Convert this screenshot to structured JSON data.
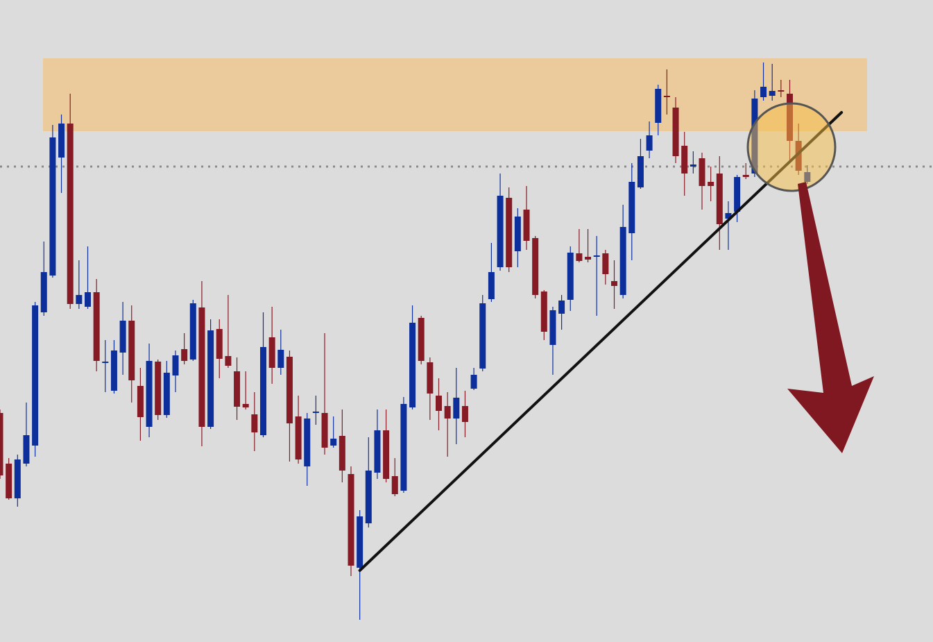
{
  "chart_data": {
    "type": "candlestick",
    "up_color": "#0d2f9c",
    "down_color": "#861a25",
    "ylim": [
      0,
      92.5
    ],
    "open": [
      33,
      25.7,
      20.7,
      25.7,
      28.3,
      47.5,
      52.8,
      69.8,
      74.7,
      48.7,
      48.3,
      50.4,
      40.2,
      36.2,
      41.7,
      46.3,
      36.9,
      31,
      40.4,
      32.7,
      38.4,
      42.2,
      40.7,
      48.2,
      31,
      45.1,
      41.2,
      39,
      34.3,
      32.8,
      29.8,
      43.9,
      39.5,
      41.1,
      32.5,
      25.3,
      33,
      33,
      28.3,
      29.7,
      24.2,
      10.7,
      17.1,
      24.4,
      30.5,
      23.9,
      21.8,
      33.8,
      46.7,
      40.3,
      35.5,
      34,
      32.2,
      34,
      36.5,
      39.4,
      49.4,
      54,
      64,
      56.3,
      62.3,
      58.2,
      50.5,
      42.8,
      47.3,
      49.3,
      56,
      55.5,
      55.5,
      56,
      52,
      50,
      58.9,
      65.5,
      70.8,
      74.8,
      78.7,
      77,
      71.5,
      68.5,
      69.7,
      66.3,
      67.5,
      61,
      62,
      67.3,
      67.5,
      78.5,
      78.7,
      79.5,
      79,
      72.2,
      66.3
    ],
    "high": [
      33.5,
      26.5,
      27,
      34.5,
      49,
      57.7,
      74.5,
      76,
      79,
      55,
      57,
      52.3,
      43.5,
      43.5,
      49,
      48.5,
      39.5,
      43,
      40.7,
      40.5,
      42,
      44.5,
      49.3,
      52,
      46.5,
      46.5,
      50,
      41,
      39,
      36,
      47.5,
      48.3,
      45,
      42,
      35.5,
      33,
      35.5,
      44.5,
      32.5,
      33.5,
      25.3,
      19,
      29.5,
      33.5,
      33.5,
      26.5,
      35.3,
      48.5,
      47,
      41,
      38,
      36,
      39.5,
      36.2,
      39.5,
      50,
      57.5,
      67.5,
      65.5,
      62.5,
      65.7,
      58.5,
      50.7,
      48.3,
      50,
      57,
      59.5,
      59.5,
      58.5,
      56.5,
      55,
      63,
      69,
      72.5,
      75,
      80.3,
      82.5,
      78.5,
      73.5,
      70.7,
      70.5,
      68.5,
      70,
      63.5,
      67.3,
      69,
      79.5,
      83.5,
      83.3,
      81,
      81,
      74.7,
      68.7
    ],
    "low": [
      23.5,
      20.5,
      19.5,
      25.3,
      26.7,
      47,
      52.5,
      64.7,
      48,
      48,
      48,
      39,
      36,
      35.8,
      38.5,
      34.5,
      29,
      29.5,
      32,
      32.3,
      36,
      40,
      40.5,
      28.2,
      30.7,
      38,
      39.5,
      32,
      33.5,
      27.5,
      29.5,
      37.2,
      38.5,
      26,
      25.7,
      22.5,
      31.3,
      27,
      28,
      23,
      9.5,
      3.2,
      16.5,
      23.5,
      23,
      21,
      21.5,
      33.5,
      40,
      32,
      30.5,
      26.7,
      28.5,
      29.5,
      36.3,
      39,
      49,
      53.5,
      53.3,
      54,
      56.5,
      49.5,
      43.5,
      38.5,
      45,
      47.7,
      54.7,
      54.7,
      47,
      51.5,
      48,
      49.5,
      55,
      65.3,
      69.7,
      73,
      76,
      69,
      64.3,
      67.5,
      62.3,
      63.5,
      56.5,
      56.5,
      60.5,
      66.7,
      67,
      78,
      78,
      78.5,
      69,
      67.3,
      66
    ],
    "close": [
      24,
      20.7,
      26.3,
      29.8,
      48.5,
      53.3,
      72.7,
      74.7,
      48.7,
      50,
      50.4,
      40.5,
      40.4,
      42,
      46.3,
      37.7,
      32.4,
      40.5,
      32.7,
      38.8,
      41.3,
      40.5,
      48.8,
      31,
      44.9,
      40.8,
      39.8,
      33.9,
      33.8,
      30.2,
      42.5,
      39.5,
      42.1,
      31.5,
      26.3,
      32.2,
      33.2,
      28,
      29.3,
      24.7,
      11,
      18.1,
      24.7,
      30.5,
      23.5,
      21.3,
      34.3,
      46,
      40.5,
      35.8,
      33.3,
      32.2,
      35.2,
      31.7,
      38.5,
      48.8,
      53.3,
      64.3,
      54,
      61.3,
      57.8,
      50,
      44.7,
      47.8,
      49.2,
      56.1,
      54.9,
      55.1,
      55.7,
      53,
      51.3,
      59.8,
      66.3,
      70,
      73,
      79.7,
      78.5,
      70,
      67.5,
      68.8,
      65.7,
      65.7,
      60.2,
      61.8,
      67,
      67,
      78.3,
      80,
      79.4,
      79.4,
      72.2,
      67.9,
      67.7
    ],
    "zone": [
      73.6,
      84.1
    ],
    "zone_color": "#ebca9c",
    "level": 68.5,
    "level_color": "#8a8a8a",
    "trendline": {
      "x": [
        41,
        95.9
      ],
      "y": [
        10.3,
        76.3
      ],
      "color": "#111111"
    }
  }
}
